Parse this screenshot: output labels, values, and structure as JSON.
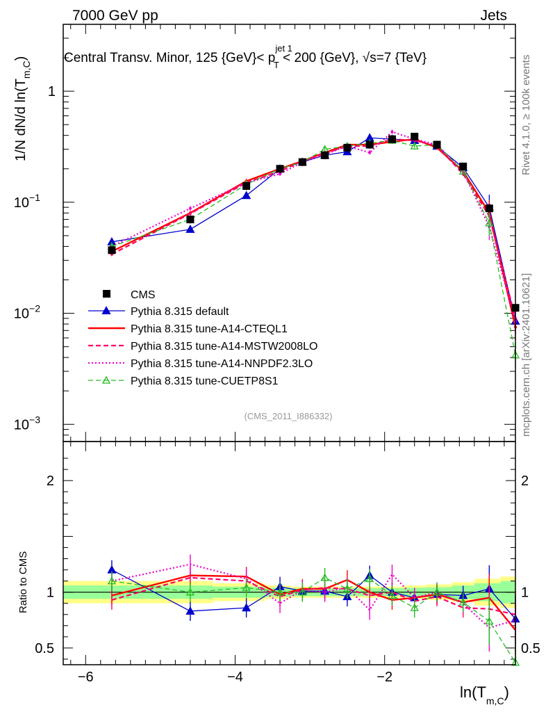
{
  "header": {
    "left": "7000 GeV pp",
    "right": "Jets",
    "title_main": "Central Transv. Minor, 125 {GeV}< p",
    "title_sup": "jet 1",
    "title_sub": "T",
    "title_tail": " < 200 {GeV}, √s=7 {TeV}",
    "side_top": "Rivet 4.1.0, ≥ 100k events",
    "side_bottom": "mcplots.cern.ch [arXiv:2401.10621]",
    "analysis": "(CMS_2011_I886332)"
  },
  "axis_labels": {
    "y_main": "1/N    dN/d ln(T",
    "y_main_sub": "m,C",
    "y_main_close": ")",
    "y_ratio": "Ratio to CMS",
    "x": "ln(T",
    "x_sub": "m,C",
    "x_close": ")"
  },
  "colors": {
    "cms": "#000000",
    "default": "#0000cc",
    "cteql1": "#ff0000",
    "mstw": "#ff0066",
    "nnpdf": "#ee00cc",
    "cuetp8s1": "#22bb22",
    "band_inner": "#99ff99",
    "band_outer": "#ffff88"
  },
  "chart_data": {
    "type": "line",
    "xlabel": "ln(T_m,C)",
    "ylabel": "1/N dN/d ln(T_m,C)",
    "xlim": [
      -6.3,
      -0.25
    ],
    "ylim_log": [
      0.0007,
      4.0
    ],
    "ratio_ylim": [
      0.35,
      2.35
    ],
    "x": [
      -5.65,
      -4.6,
      -3.85,
      -3.4,
      -3.1,
      -2.8,
      -2.5,
      -2.2,
      -1.9,
      -1.6,
      -1.3,
      -0.95,
      -0.6,
      -0.25
    ],
    "x_ticks": [
      -6,
      -4,
      -2
    ],
    "x_tick_labels": [
      "−6",
      "−4",
      "−2"
    ],
    "y_ticks": [
      0.001,
      0.01,
      0.1,
      1
    ],
    "y_tick_labels": [
      {
        "base": "10",
        "exp": "−3"
      },
      {
        "base": "10",
        "exp": "−2"
      },
      {
        "base": "10",
        "exp": "−1"
      },
      {
        "base": "1",
        "exp": ""
      }
    ],
    "ratio_ticks": [
      0.5,
      1,
      2
    ],
    "ratio_tick_labels": [
      "0.5",
      "1",
      "2"
    ],
    "band_edges": [
      -6.3,
      -5.4,
      -4.3,
      -3.6,
      -3.25,
      -2.95,
      -2.65,
      -2.35,
      -2.05,
      -1.75,
      -1.45,
      -1.1,
      -0.8,
      -0.45,
      -0.25
    ],
    "band_inner": [
      0.06,
      0.06,
      0.05,
      0.04,
      0.035,
      0.035,
      0.035,
      0.035,
      0.035,
      0.04,
      0.045,
      0.06,
      0.08,
      0.1
    ],
    "band_outer": [
      0.1,
      0.1,
      0.08,
      0.06,
      0.05,
      0.05,
      0.05,
      0.05,
      0.05,
      0.06,
      0.07,
      0.09,
      0.12,
      0.14
    ],
    "cms": [
      0.037,
      0.07,
      0.14,
      0.2,
      0.23,
      0.265,
      0.31,
      0.33,
      0.37,
      0.39,
      0.33,
      0.21,
      0.088,
      0.0112
    ],
    "legend": [
      "CMS",
      "Pythia 8.315 default",
      "Pythia 8.315 tune-A14-CTEQL1",
      "Pythia 8.315 tune-A14-MSTW2008LO",
      "Pythia 8.315 tune-A14-NNPDF2.3LO",
      "Pythia 8.315 tune-CUETP8S1"
    ],
    "series": [
      {
        "name": "Pythia 8.315 default",
        "key": "default",
        "style": "solid",
        "marker": "triangle-filled",
        "values": [
          0.044,
          0.057,
          0.115,
          0.2,
          0.23,
          0.265,
          0.285,
          0.38,
          0.37,
          0.36,
          0.32,
          0.205,
          0.09,
          0.0085
        ],
        "ratio": [
          1.2,
          0.83,
          0.86,
          1.05,
          1.01,
          1.01,
          0.96,
          1.15,
          1.0,
          0.95,
          0.98,
          0.97,
          1.03,
          0.76
        ]
      },
      {
        "name": "Pythia 8.315 tune-A14-CTEQL1",
        "key": "cteql1",
        "style": "solid",
        "marker": "none",
        "values": [
          0.036,
          0.08,
          0.155,
          0.2,
          0.235,
          0.28,
          0.33,
          0.33,
          0.35,
          0.37,
          0.31,
          0.19,
          0.08,
          0.0075
        ],
        "ratio": [
          0.97,
          1.15,
          1.14,
          0.98,
          1.03,
          1.03,
          1.11,
          1.0,
          0.93,
          0.95,
          0.98,
          0.91,
          0.95,
          0.66
        ]
      },
      {
        "name": "Pythia 8.315 tune-A14-MSTW2008LO",
        "key": "mstw",
        "style": "dashed",
        "marker": "none",
        "values": [
          0.034,
          0.079,
          0.15,
          0.19,
          0.235,
          0.275,
          0.32,
          0.32,
          0.37,
          0.36,
          0.32,
          0.18,
          0.075,
          0.009
        ],
        "ratio": [
          0.93,
          1.13,
          1.1,
          0.96,
          1.02,
          1.04,
          1.03,
          0.97,
          1.0,
          0.92,
          0.96,
          0.86,
          0.85,
          0.8
        ]
      },
      {
        "name": "Pythia 8.315 tune-A14-NNPDF2.3LO",
        "key": "nnpdf",
        "style": "dotted",
        "marker": "none",
        "values": [
          0.04,
          0.088,
          0.15,
          0.18,
          0.23,
          0.27,
          0.32,
          0.28,
          0.43,
          0.37,
          0.33,
          0.19,
          0.06,
          0.0085
        ],
        "ratio": [
          1.1,
          1.25,
          1.12,
          0.9,
          1.02,
          1.0,
          1.04,
          0.84,
          1.16,
          0.95,
          1.0,
          0.9,
          0.68,
          0.75
        ]
      },
      {
        "name": "Pythia 8.315 tune-CUETP8S1",
        "key": "cuetp8s1",
        "style": "dashed",
        "marker": "triangle-open",
        "values": [
          0.04,
          0.07,
          0.145,
          0.2,
          0.23,
          0.3,
          0.32,
          0.34,
          0.36,
          0.32,
          0.33,
          0.19,
          0.065,
          0.0042
        ],
        "ratio": [
          1.1,
          1.0,
          1.04,
          1.0,
          1.0,
          1.13,
          1.03,
          1.12,
          0.97,
          0.86,
          1.0,
          0.91,
          0.74,
          0.37
        ]
      }
    ]
  }
}
